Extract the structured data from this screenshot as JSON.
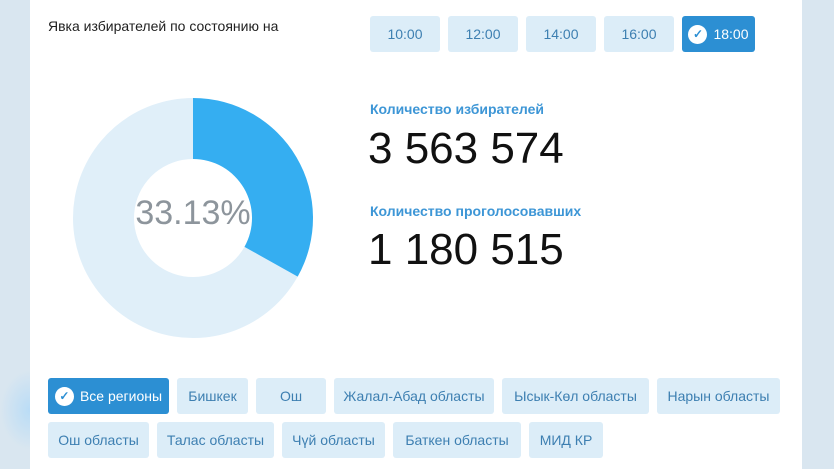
{
  "header": {
    "title": "Явка избирателей по состоянию на"
  },
  "times": [
    {
      "label": "10:00",
      "selected": false
    },
    {
      "label": "12:00",
      "selected": false
    },
    {
      "label": "14:00",
      "selected": false
    },
    {
      "label": "16:00",
      "selected": false
    },
    {
      "label": "18:00",
      "selected": true
    }
  ],
  "turnout": {
    "percent_label": "33.13%",
    "fraction": 0.3313,
    "colors": {
      "filled": "#35aef1",
      "remaining": "#e0eff9"
    }
  },
  "stats": {
    "voters_label": "Количество избирателей",
    "voters_value": "3 563 574",
    "voted_label": "Количество проголосовавших",
    "voted_value": "1 180 515"
  },
  "regions": [
    {
      "label": "Все регионы",
      "selected": true
    },
    {
      "label": "Бишкек",
      "selected": false
    },
    {
      "label": "Ош",
      "selected": false
    },
    {
      "label": "Жалал-Абад областы",
      "selected": false
    },
    {
      "label": "Ысык-Көл областы",
      "selected": false
    },
    {
      "label": "Нарын областы",
      "selected": false
    },
    {
      "label": "Ош областы",
      "selected": false
    },
    {
      "label": "Талас областы",
      "selected": false
    },
    {
      "label": "Чүй областы",
      "selected": false
    },
    {
      "label": "Баткен областы",
      "selected": false
    },
    {
      "label": "МИД КР",
      "selected": false
    }
  ],
  "icons": {
    "selected_marker": "check-icon"
  }
}
